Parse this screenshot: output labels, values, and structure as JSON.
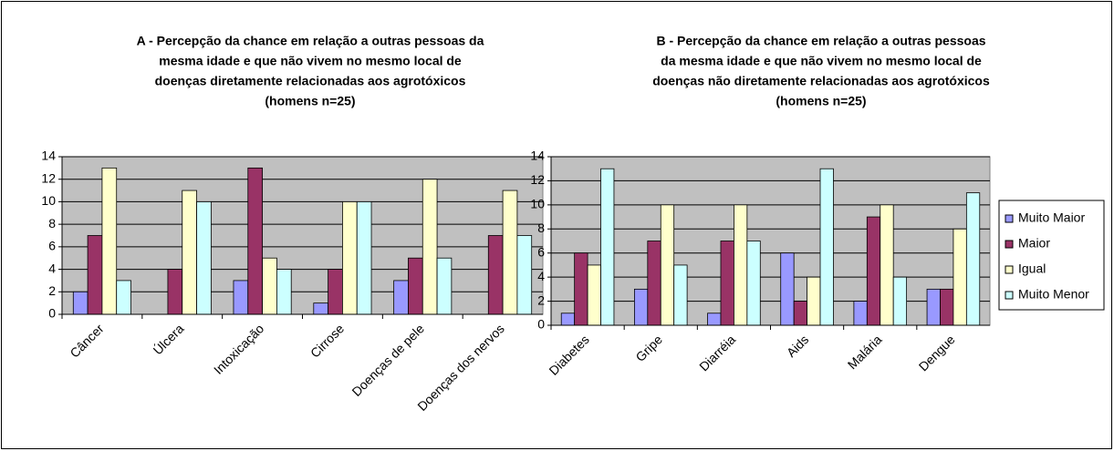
{
  "chart_data": [
    {
      "type": "bar",
      "title": [
        "A - Percepção da chance em relação a outras pessoas da",
        "mesma idade e que não vivem no mesmo local de",
        "doenças diretamente relacionadas aos agrotóxicos",
        "(homens n=25)"
      ],
      "categories": [
        "Câncer",
        "Úlcera",
        "Intoxicação",
        "Cirrose",
        "Doenças de pele",
        "Doenças dos nervos"
      ],
      "series": [
        {
          "color": "#9999ff",
          "values": [
            2,
            0,
            3,
            1,
            3,
            0
          ]
        },
        {
          "color": "#993366",
          "values": [
            7,
            4,
            13,
            4,
            5,
            7
          ]
        },
        {
          "color": "#ffffcc",
          "values": [
            13,
            11,
            5,
            10,
            12,
            11
          ]
        },
        {
          "color": "#ccffff",
          "values": [
            3,
            10,
            4,
            10,
            5,
            7
          ]
        }
      ],
      "ylim": [
        0,
        14
      ],
      "yticks": [
        0,
        2,
        4,
        6,
        8,
        10,
        12,
        14
      ],
      "grid": true
    },
    {
      "type": "bar",
      "title": [
        "B - Percepção da chance em relação a outras pessoas",
        "da mesma idade e que não vivem no mesmo local de",
        "doenças não diretamente relacionadas aos agrotóxicos",
        "(homens n=25)"
      ],
      "categories": [
        "Diabetes",
        "Gripe",
        "Diarréia",
        "Aids",
        "Malária",
        "Dengue"
      ],
      "series": [
        {
          "name": "Muito Maior",
          "color": "#9999ff",
          "values": [
            1,
            3,
            1,
            6,
            2,
            3
          ]
        },
        {
          "name": "Maior",
          "color": "#993366",
          "values": [
            6,
            7,
            7,
            2,
            9,
            3
          ]
        },
        {
          "name": "Igual",
          "color": "#ffffcc",
          "values": [
            5,
            10,
            10,
            4,
            10,
            8
          ]
        },
        {
          "name": "Muito Menor",
          "color": "#ccffff",
          "values": [
            13,
            5,
            7,
            13,
            4,
            11
          ]
        }
      ],
      "ylim": [
        0,
        14
      ],
      "yticks": [
        0,
        2,
        4,
        6,
        8,
        10,
        12,
        14
      ],
      "grid": true,
      "legend": "right"
    }
  ]
}
